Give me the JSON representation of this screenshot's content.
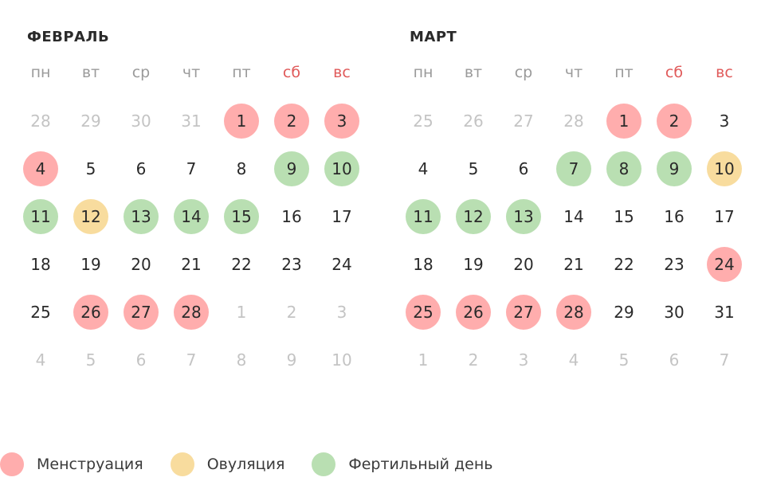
{
  "weekdays": [
    {
      "label": "пн",
      "weekend": false
    },
    {
      "label": "вт",
      "weekend": false
    },
    {
      "label": "ср",
      "weekend": false
    },
    {
      "label": "чт",
      "weekend": false
    },
    {
      "label": "пт",
      "weekend": false
    },
    {
      "label": "сб",
      "weekend": true
    },
    {
      "label": "вс",
      "weekend": true
    }
  ],
  "colors": {
    "menstruation": "#ffadad",
    "ovulation": "#f8dc9e",
    "fertile": "#b9dfb2",
    "weekend": "#e05a5a"
  },
  "months": [
    {
      "title": "ФЕВРАЛЬ",
      "days": [
        [
          "28",
          "out"
        ],
        [
          "29",
          "out"
        ],
        [
          "30",
          "out"
        ],
        [
          "31",
          "out"
        ],
        [
          "1",
          "m"
        ],
        [
          "2",
          "m"
        ],
        [
          "3",
          "m"
        ],
        [
          "4",
          "m"
        ],
        [
          "5",
          ""
        ],
        [
          "6",
          ""
        ],
        [
          "7",
          ""
        ],
        [
          "8",
          ""
        ],
        [
          "9",
          "f"
        ],
        [
          "10",
          "f"
        ],
        [
          "11",
          "f"
        ],
        [
          "12",
          "o"
        ],
        [
          "13",
          "f"
        ],
        [
          "14",
          "f"
        ],
        [
          "15",
          "f"
        ],
        [
          "16",
          ""
        ],
        [
          "17",
          ""
        ],
        [
          "18",
          ""
        ],
        [
          "19",
          ""
        ],
        [
          "20",
          ""
        ],
        [
          "21",
          ""
        ],
        [
          "22",
          ""
        ],
        [
          "23",
          ""
        ],
        [
          "24",
          ""
        ],
        [
          "25",
          ""
        ],
        [
          "26",
          "m"
        ],
        [
          "27",
          "m"
        ],
        [
          "28",
          "m"
        ],
        [
          "1",
          "out"
        ],
        [
          "2",
          "out"
        ],
        [
          "3",
          "out"
        ],
        [
          "4",
          "out"
        ],
        [
          "5",
          "out"
        ],
        [
          "6",
          "out"
        ],
        [
          "7",
          "out"
        ],
        [
          "8",
          "out"
        ],
        [
          "9",
          "out"
        ],
        [
          "10",
          "out"
        ]
      ]
    },
    {
      "title": "МАРТ",
      "days": [
        [
          "25",
          "out"
        ],
        [
          "26",
          "out"
        ],
        [
          "27",
          "out"
        ],
        [
          "28",
          "out"
        ],
        [
          "1",
          "m"
        ],
        [
          "2",
          "m"
        ],
        [
          "3",
          ""
        ],
        [
          "4",
          ""
        ],
        [
          "5",
          ""
        ],
        [
          "6",
          ""
        ],
        [
          "7",
          "f"
        ],
        [
          "8",
          "f"
        ],
        [
          "9",
          "f"
        ],
        [
          "10",
          "o"
        ],
        [
          "11",
          "f"
        ],
        [
          "12",
          "f"
        ],
        [
          "13",
          "f"
        ],
        [
          "14",
          ""
        ],
        [
          "15",
          ""
        ],
        [
          "16",
          ""
        ],
        [
          "17",
          ""
        ],
        [
          "18",
          ""
        ],
        [
          "19",
          ""
        ],
        [
          "20",
          ""
        ],
        [
          "21",
          ""
        ],
        [
          "22",
          ""
        ],
        [
          "23",
          ""
        ],
        [
          "24",
          "m"
        ],
        [
          "25",
          "m"
        ],
        [
          "26",
          "m"
        ],
        [
          "27",
          "m"
        ],
        [
          "28",
          "m"
        ],
        [
          "29",
          ""
        ],
        [
          "30",
          ""
        ],
        [
          "31",
          ""
        ],
        [
          "1",
          "out"
        ],
        [
          "2",
          "out"
        ],
        [
          "3",
          "out"
        ],
        [
          "4",
          "out"
        ],
        [
          "5",
          "out"
        ],
        [
          "6",
          "out"
        ],
        [
          "7",
          "out"
        ]
      ]
    }
  ],
  "legend": [
    {
      "label": "Менструация",
      "type": "m"
    },
    {
      "label": "Овуляция",
      "type": "o"
    },
    {
      "label": "Фертильный день",
      "type": "f"
    }
  ]
}
